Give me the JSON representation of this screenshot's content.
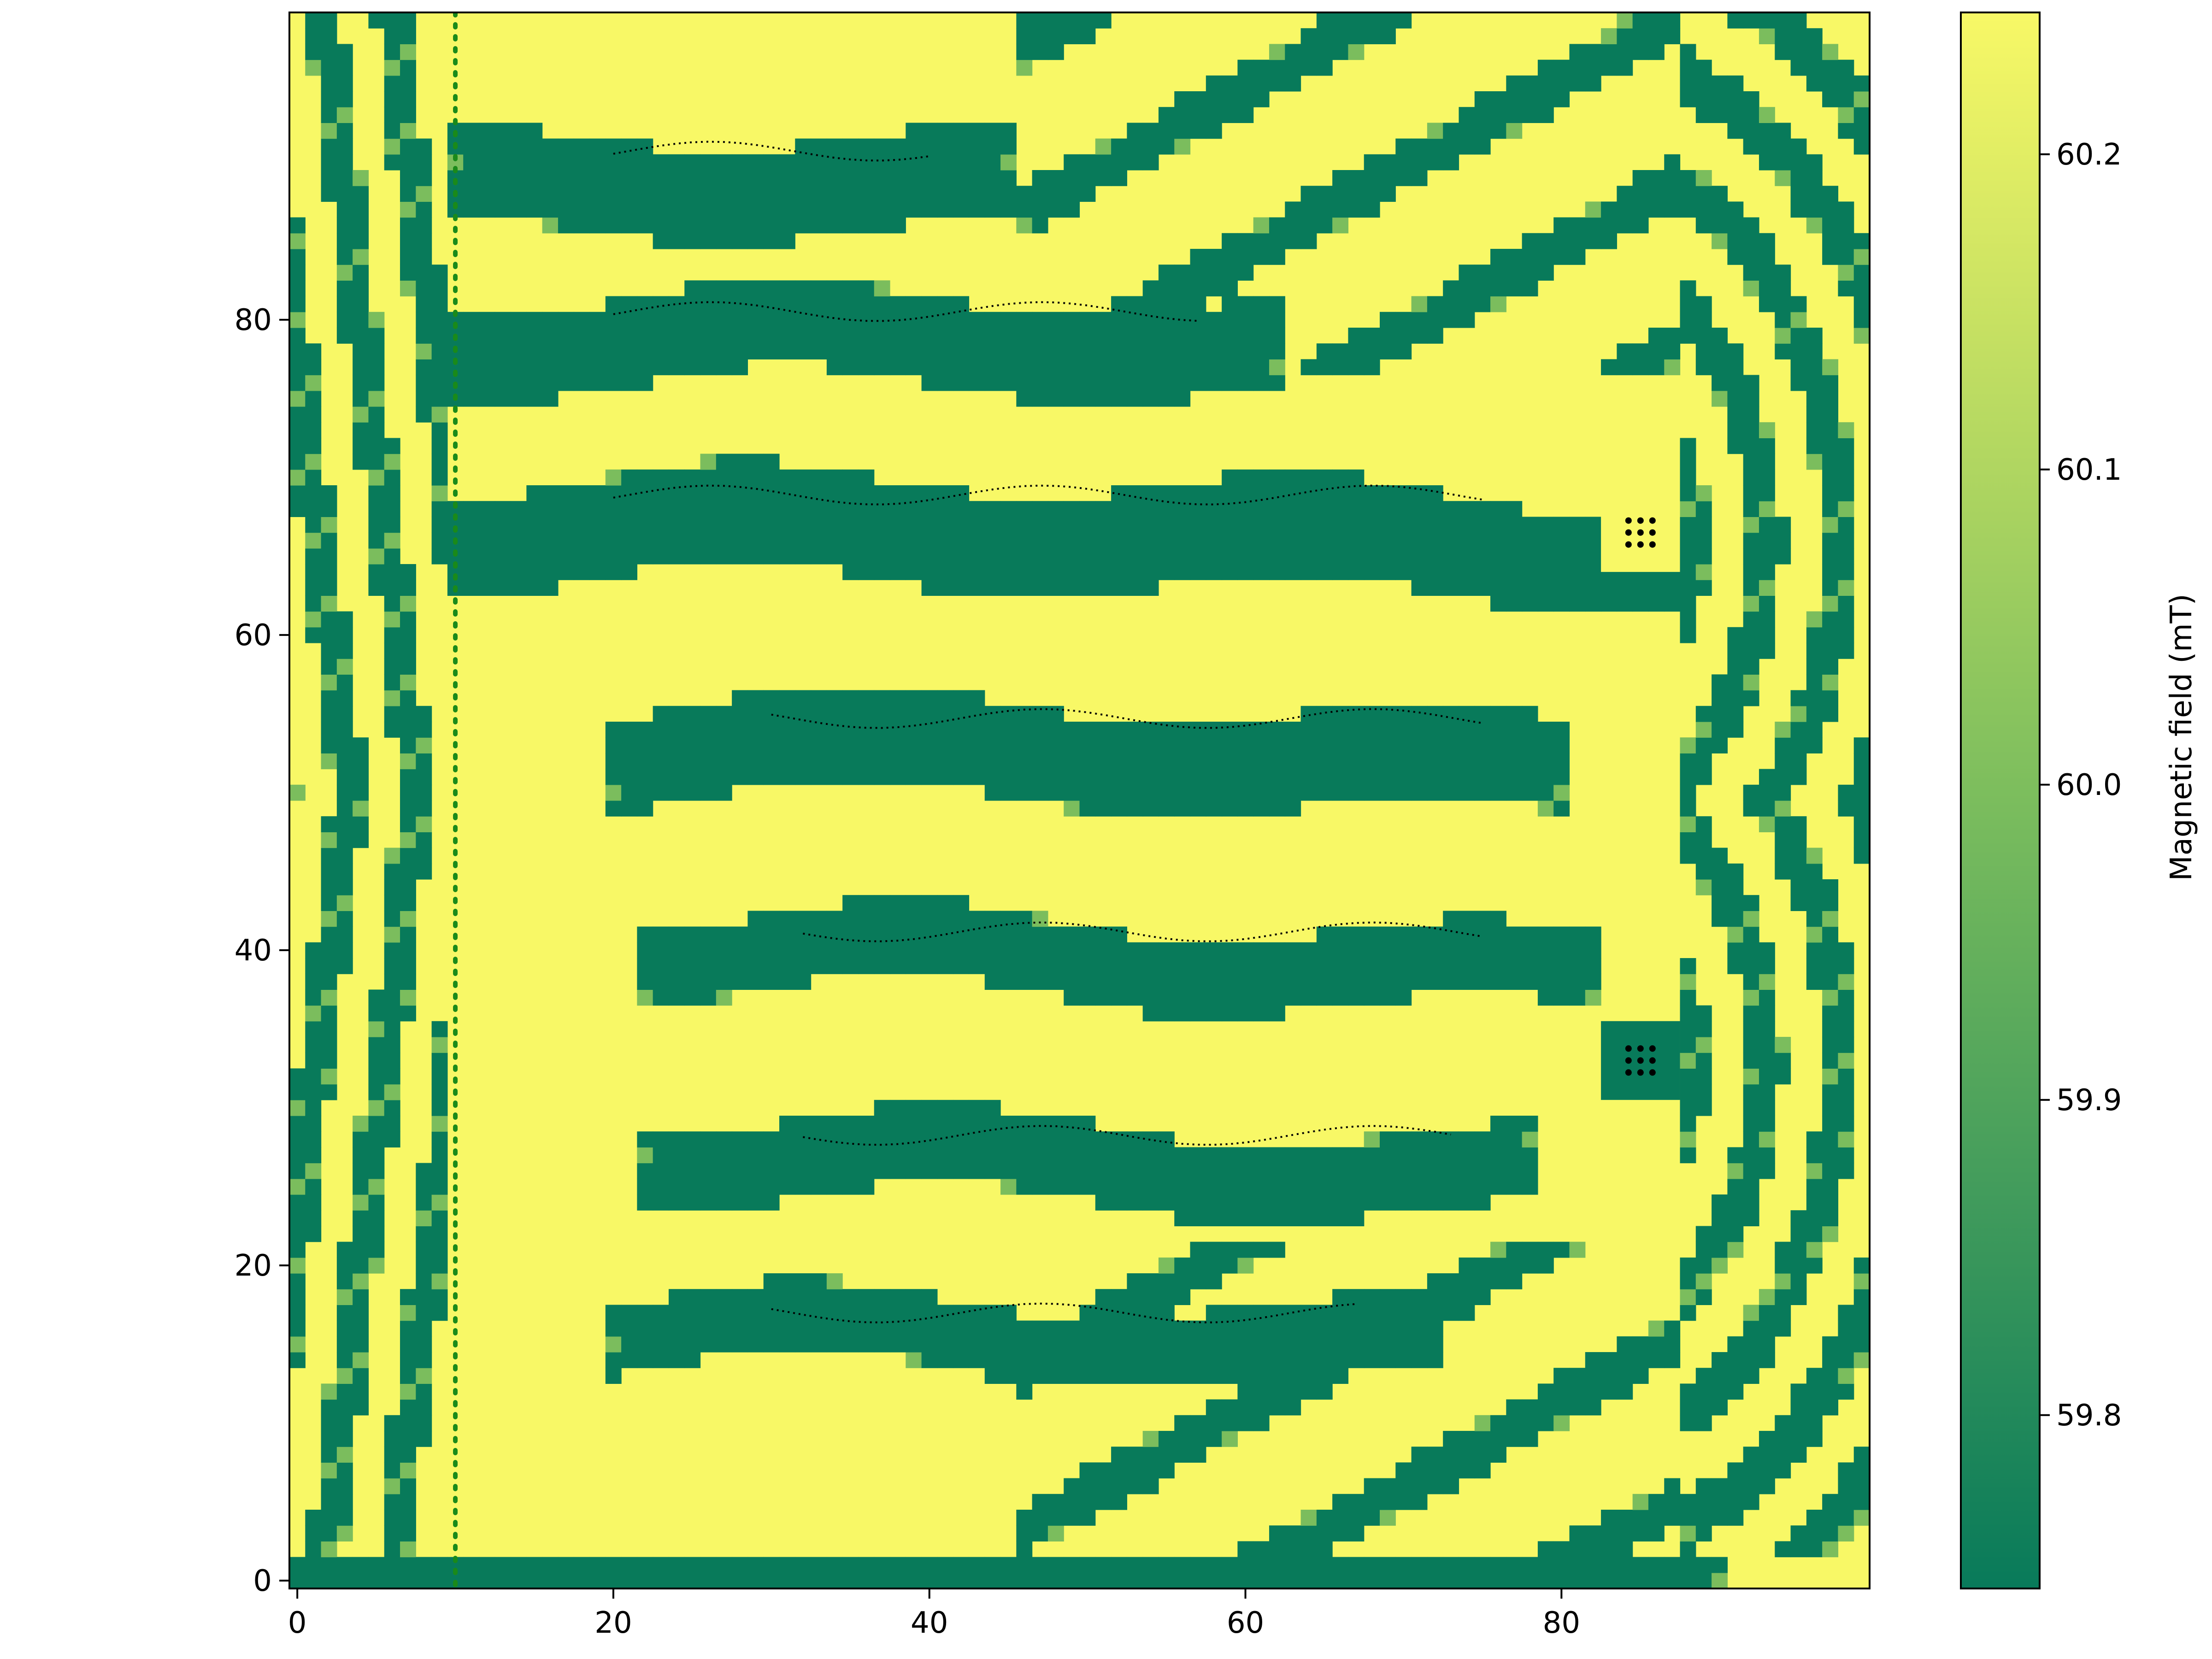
{
  "chart_data": {
    "type": "heatmap",
    "title": "",
    "xlabel": "",
    "ylabel": "",
    "xlim": [
      0,
      99
    ],
    "ylim": [
      0,
      99
    ],
    "x_ticks": [
      "0",
      "20",
      "40",
      "60",
      "80"
    ],
    "y_ticks": [
      "0",
      "20",
      "40",
      "60",
      "80"
    ],
    "grid": false,
    "colorbar": {
      "label": "Magnetic field (mT)",
      "range": [
        59.745,
        60.245
      ],
      "ticks": [
        "59.8",
        "59.9",
        "60.0",
        "60.1",
        "60.2"
      ],
      "color_low": "#087a5a",
      "color_mid": "#7bbd5d",
      "color_high": "#f8f866"
    },
    "field_description": "Binary-like stripe pattern alternating between ~59.75 mT and ~60.24 mT; two U-shaped band systems wrap around obstacles near (85, 66) and (85, 33); vertical stripe boundary near x≈10 with dotted marker",
    "dark_bands": [
      {
        "x_from": 10,
        "x_to": 90,
        "y_center": 66,
        "half_width": 3.2
      },
      {
        "x_from": 20,
        "x_to": 80,
        "y_center": 52,
        "half_width": 3.0
      },
      {
        "x_from": 22,
        "x_to": 82,
        "y_center": 39,
        "half_width": 2.4
      },
      {
        "x_from": 22,
        "x_to": 78,
        "y_center": 26,
        "half_width": 2.5
      },
      {
        "x_from": 20,
        "x_to": 72,
        "y_center": 15,
        "half_width": 2.2
      },
      {
        "x_from": 10,
        "x_to": 62,
        "y_center": 78,
        "half_width": 2.8
      },
      {
        "x_from": 10,
        "x_to": 45,
        "y_center": 88,
        "half_width": 3.0
      }
    ],
    "obstacles": [
      {
        "x": 85,
        "y": 66.5,
        "fill": "#f8f866"
      },
      {
        "x": 85,
        "y": 33,
        "fill": "#087a5a"
      }
    ],
    "marker_line": {
      "x": 10,
      "y_from": 0,
      "y_to": 99,
      "style": "dotted",
      "color": "#1a8a1a"
    }
  }
}
